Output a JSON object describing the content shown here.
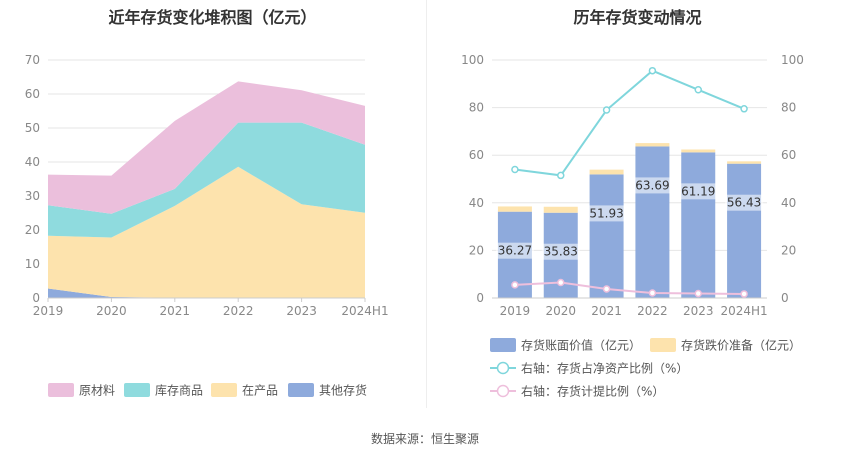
{
  "source_label": "数据来源：恒生聚源",
  "chart_data": [
    {
      "type": "area",
      "stacked": true,
      "title": "近年存货变化堆积图（亿元）",
      "categories": [
        "2019",
        "2020",
        "2021",
        "2022",
        "2023",
        "2024H1"
      ],
      "ylim": [
        0,
        70
      ],
      "yticks": [
        "0",
        "10",
        "20",
        "30",
        "40",
        "50",
        "60",
        "70"
      ],
      "grid": true,
      "legend_position": "bottom",
      "series": [
        {
          "name": "原材料",
          "color": "#ebbfdc",
          "values": [
            9.0,
            11.2,
            20.0,
            12.1,
            9.5,
            11.4
          ]
        },
        {
          "name": "库存商品",
          "color": "#8fdbde",
          "values": [
            9.0,
            7.0,
            5.0,
            13.0,
            24.0,
            20.0
          ]
        },
        {
          "name": "在产品",
          "color": "#fde3ad",
          "values": [
            15.5,
            17.5,
            27.0,
            38.5,
            27.5,
            25.0
          ]
        },
        {
          "name": "其他存货",
          "color": "#8eaadc",
          "values": [
            2.8,
            0.3,
            0.1,
            0.1,
            0.1,
            0.1
          ]
        }
      ]
    },
    {
      "type": "bar",
      "title": "历年存货变动情况",
      "categories": [
        "2019",
        "2020",
        "2021",
        "2022",
        "2023",
        "2024H1"
      ],
      "ylim": [
        0,
        100
      ],
      "y2lim": [
        0,
        100
      ],
      "yticks": [
        "0",
        "20",
        "40",
        "60",
        "80",
        "100"
      ],
      "y2ticks": [
        "0",
        "20",
        "40",
        "60",
        "80",
        "100"
      ],
      "grid": true,
      "legend_position": "bottom",
      "series": [
        {
          "name": "存货账面价值（亿元）",
          "kind": "bar",
          "color": "#8eaadc",
          "values": [
            36.27,
            35.83,
            51.93,
            63.69,
            61.19,
            56.43
          ],
          "labels": [
            "36.27",
            "35.83",
            "51.93",
            "63.69",
            "61.19",
            "56.43"
          ]
        },
        {
          "name": "存货跌价准备（亿元）",
          "kind": "bar",
          "color": "#fde3ad",
          "values": [
            2.2,
            2.5,
            2.0,
            1.4,
            1.2,
            1.0
          ]
        },
        {
          "name": "右轴：存货占净资产比例（%）",
          "kind": "line",
          "axis": "right",
          "color": "#7fd6dc",
          "values": [
            54.0,
            51.5,
            79.0,
            95.5,
            87.5,
            79.5
          ]
        },
        {
          "name": "右轴：存货计提比例（%）",
          "kind": "line",
          "axis": "right",
          "color": "#eebfdc",
          "values": [
            5.5,
            6.5,
            3.8,
            2.1,
            1.9,
            1.7
          ]
        }
      ]
    }
  ]
}
